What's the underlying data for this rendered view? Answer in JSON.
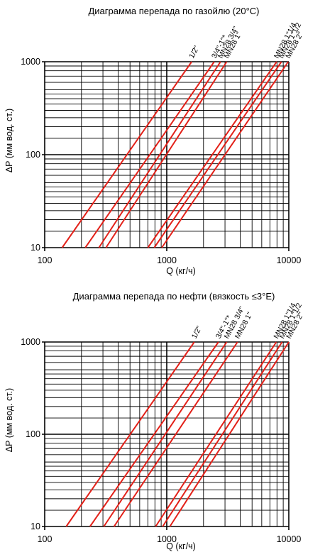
{
  "chart_data": [
    {
      "type": "line",
      "title": "Диаграмма перепада по газойлю (20°C)",
      "xlabel": "Q (кг/ч)",
      "ylabel": "ΔP (мм вод. ст.)",
      "x_scale": "log",
      "y_scale": "log",
      "xlim": [
        100,
        10000
      ],
      "ylim": [
        10,
        1000
      ],
      "x_ticks": [
        "100",
        "1000",
        "10000"
      ],
      "y_ticks": [
        "10",
        "100",
        "1000"
      ],
      "grid": true,
      "line_color": "#e32119",
      "series": [
        {
          "name": "1/2\"",
          "x": [
            139,
            1600
          ],
          "y": [
            10,
            1000
          ]
        },
        {
          "name": "3/4\"-1\"*",
          "x": [
            215,
            2450
          ],
          "y": [
            10,
            1000
          ]
        },
        {
          "name": "MN28 3/4\"",
          "x": [
            278,
            2760
          ],
          "y": [
            10,
            1000
          ]
        },
        {
          "name": "MN28 1\"",
          "x": [
            318,
            3100
          ],
          "y": [
            10,
            1000
          ]
        },
        {
          "name": "MN28 1\"1/4",
          "x": [
            700,
            7950
          ],
          "y": [
            10,
            1000
          ]
        },
        {
          "name": "MN28 1\"1/2",
          "x": [
            790,
            8700
          ],
          "y": [
            10,
            1000
          ]
        },
        {
          "name": "MN28 2\"",
          "x": [
            910,
            9900
          ],
          "y": [
            10,
            1000
          ]
        }
      ]
    },
    {
      "type": "line",
      "title": "Диаграмма перепада по нефти (вязкость ≤3°E)",
      "xlabel": "Q (кг/ч)",
      "ylabel": "ΔP (мм вод. ст.)",
      "x_scale": "log",
      "y_scale": "log",
      "xlim": [
        100,
        10000
      ],
      "ylim": [
        10,
        1000
      ],
      "x_ticks": [
        "100",
        "1000",
        "10000"
      ],
      "y_ticks": [
        "10",
        "100",
        "1000"
      ],
      "grid": true,
      "line_color": "#e32119",
      "series": [
        {
          "name": "1/2\"",
          "x": [
            150,
            1680
          ],
          "y": [
            10,
            1000
          ]
        },
        {
          "name": "3/4\"-1\"*",
          "x": [
            235,
            2650
          ],
          "y": [
            10,
            1000
          ]
        },
        {
          "name": "MN28 3/4\"",
          "x": [
            305,
            3100
          ],
          "y": [
            10,
            1000
          ]
        },
        {
          "name": "MN28 1\"",
          "x": [
            370,
            3800
          ],
          "y": [
            10,
            1000
          ]
        },
        {
          "name": "MN28 1\"1/4",
          "x": [
            810,
            7900
          ],
          "y": [
            10,
            1000
          ]
        },
        {
          "name": "MN28 1\"1/2",
          "x": [
            925,
            8800
          ],
          "y": [
            10,
            1000
          ]
        },
        {
          "name": "MN28 2\"",
          "x": [
            1060,
            10000
          ],
          "y": [
            10,
            1000
          ]
        }
      ]
    }
  ]
}
